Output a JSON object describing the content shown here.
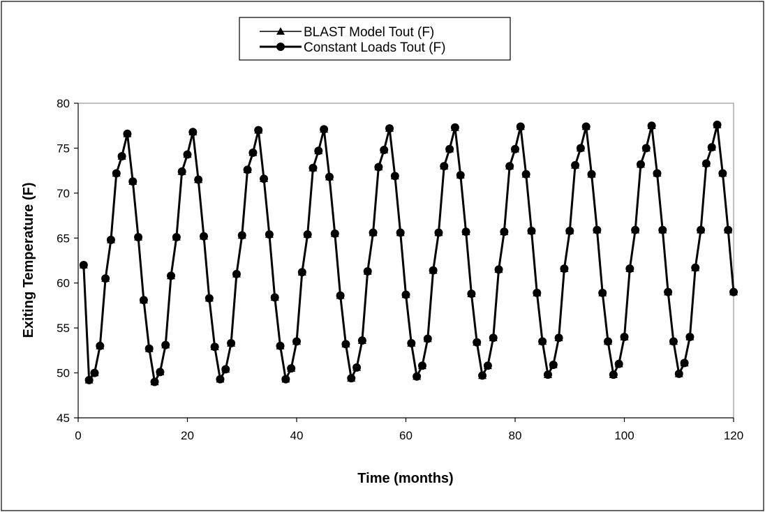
{
  "chart_data": {
    "type": "line",
    "title": "",
    "xlabel": "Time (months)",
    "ylabel": "Exiting Temperature (F)",
    "xlim": [
      0,
      120
    ],
    "ylim": [
      45,
      80
    ],
    "x_ticks": [
      0,
      20,
      40,
      60,
      80,
      100,
      120
    ],
    "y_ticks": [
      45,
      50,
      55,
      60,
      65,
      70,
      75,
      80
    ],
    "grid": false,
    "legend_position": "top-center",
    "x": [
      1,
      2,
      3,
      4,
      5,
      6,
      7,
      8,
      9,
      10,
      11,
      12,
      13,
      14,
      15,
      16,
      17,
      18,
      19,
      20,
      21,
      22,
      23,
      24,
      25,
      26,
      27,
      28,
      29,
      30,
      31,
      32,
      33,
      34,
      35,
      36,
      37,
      38,
      39,
      40,
      41,
      42,
      43,
      44,
      45,
      46,
      47,
      48,
      49,
      50,
      51,
      52,
      53,
      54,
      55,
      56,
      57,
      58,
      59,
      60,
      61,
      62,
      63,
      64,
      65,
      66,
      67,
      68,
      69,
      70,
      71,
      72,
      73,
      74,
      75,
      76,
      77,
      78,
      79,
      80,
      81,
      82,
      83,
      84,
      85,
      86,
      87,
      88,
      89,
      90,
      91,
      92,
      93,
      94,
      95,
      96,
      97,
      98,
      99,
      100,
      101,
      102,
      103,
      104,
      105,
      106,
      107,
      108,
      109,
      110,
      111,
      112,
      113,
      114,
      115,
      116,
      117,
      118,
      119,
      120
    ],
    "series": [
      {
        "name": "BLAST Model Tout (F)",
        "marker": "triangle",
        "color": "#000000",
        "values": [
          62.0,
          49.2,
          50.0,
          53.0,
          60.5,
          64.8,
          72.2,
          74.1,
          76.6,
          71.3,
          65.1,
          58.1,
          52.7,
          49.0,
          50.1,
          53.1,
          60.8,
          65.1,
          72.4,
          74.3,
          76.8,
          71.5,
          65.2,
          58.3,
          52.9,
          49.3,
          50.4,
          53.3,
          61.0,
          65.3,
          72.6,
          74.5,
          77.0,
          71.6,
          65.4,
          58.4,
          53.0,
          49.3,
          50.5,
          53.5,
          61.2,
          65.4,
          72.8,
          74.7,
          77.1,
          71.8,
          65.5,
          58.6,
          53.2,
          49.4,
          50.6,
          53.6,
          61.3,
          65.6,
          72.9,
          74.8,
          77.2,
          71.9,
          65.6,
          58.7,
          53.3,
          49.6,
          50.8,
          53.8,
          61.4,
          65.6,
          73.0,
          74.9,
          77.3,
          72.0,
          65.7,
          58.8,
          53.4,
          49.7,
          50.8,
          53.9,
          61.5,
          65.7,
          73.0,
          74.9,
          77.4,
          72.1,
          65.8,
          58.9,
          53.5,
          49.8,
          50.9,
          53.9,
          61.6,
          65.8,
          73.1,
          75.0,
          77.4,
          72.1,
          65.9,
          58.9,
          53.5,
          49.8,
          51.0,
          54.0,
          61.6,
          65.9,
          73.2,
          75.0,
          77.5,
          72.2,
          65.9,
          59.0,
          53.5,
          49.9,
          51.1,
          54.0,
          61.7,
          65.9,
          73.3,
          75.1,
          77.6,
          72.2,
          65.9,
          59.0
        ]
      },
      {
        "name": "Constant Loads Tout (F)",
        "marker": "circle",
        "color": "#000000",
        "values": [
          62.0,
          49.2,
          50.0,
          53.0,
          60.5,
          64.8,
          72.2,
          74.1,
          76.6,
          71.3,
          65.1,
          58.1,
          52.7,
          49.0,
          50.1,
          53.1,
          60.8,
          65.1,
          72.4,
          74.3,
          76.8,
          71.5,
          65.2,
          58.3,
          52.9,
          49.3,
          50.4,
          53.3,
          61.0,
          65.3,
          72.6,
          74.5,
          77.0,
          71.6,
          65.4,
          58.4,
          53.0,
          49.3,
          50.5,
          53.5,
          61.2,
          65.4,
          72.8,
          74.7,
          77.1,
          71.8,
          65.5,
          58.6,
          53.2,
          49.4,
          50.6,
          53.6,
          61.3,
          65.6,
          72.9,
          74.8,
          77.2,
          71.9,
          65.6,
          58.7,
          53.3,
          49.6,
          50.8,
          53.8,
          61.4,
          65.6,
          73.0,
          74.9,
          77.3,
          72.0,
          65.7,
          58.8,
          53.4,
          49.7,
          50.8,
          53.9,
          61.5,
          65.7,
          73.0,
          74.9,
          77.4,
          72.1,
          65.8,
          58.9,
          53.5,
          49.8,
          50.9,
          53.9,
          61.6,
          65.8,
          73.1,
          75.0,
          77.4,
          72.1,
          65.9,
          58.9,
          53.5,
          49.8,
          51.0,
          54.0,
          61.6,
          65.9,
          73.2,
          75.0,
          77.5,
          72.2,
          65.9,
          59.0,
          53.5,
          49.9,
          51.1,
          54.0,
          61.7,
          65.9,
          73.3,
          75.1,
          77.6,
          72.2,
          65.9,
          59.0
        ]
      }
    ]
  }
}
